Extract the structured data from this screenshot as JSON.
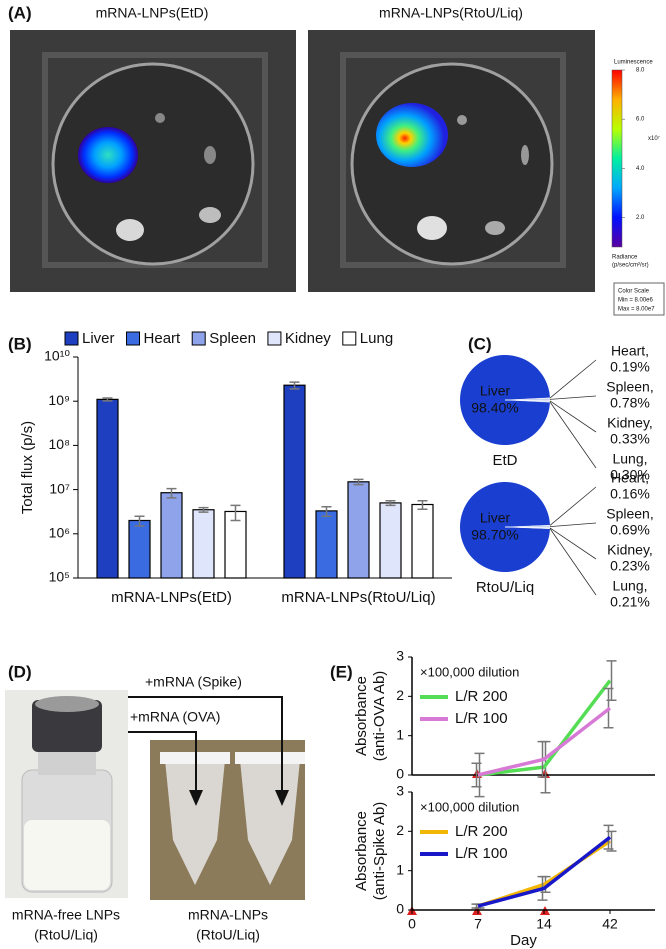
{
  "figure": {
    "panel_labels": [
      "(A)",
      "(B)",
      "(C)",
      "(D)",
      "(E)"
    ],
    "image_titles": [
      "mRNA-LNPs(EtD)",
      "mRNA-LNPs(RtoU/Liq)"
    ],
    "colorbar_box": [
      "Color Scale",
      "Min = 8.00e6",
      "Max = 8.00e7"
    ],
    "arrow_labels": [
      "+mRNA (Spike)",
      "+mRNA (OVA)"
    ],
    "photo_captions": [
      [
        "mRNA-free LNPs",
        "(RtoU/Liq)"
      ],
      [
        "mRNA-LNPs",
        "(RtoU/Liq)"
      ]
    ]
  },
  "chart_data": [
    {
      "type": "colorbar",
      "title": "Luminescence",
      "scale_label": "x10⁷",
      "ylabel": [
        "Radiance",
        "(p/sec/cm²/sr)"
      ],
      "colors": [
        "#5a00a0",
        "#0010ff",
        "#00a8ff",
        "#00f0a0",
        "#b8ff00",
        "#ffb000",
        "#ff0000"
      ],
      "ylim": [
        0.8,
        8
      ],
      "yticks": [
        {
          "value": 2,
          "label": "2.0"
        },
        {
          "value": 4,
          "label": "4.0"
        },
        {
          "value": 6,
          "label": "6.0"
        },
        {
          "value": 8,
          "label": "8.0"
        }
      ]
    },
    {
      "type": "bar",
      "yscale": "log",
      "ylabel": "Total flux (p/s)",
      "categories": [
        "mRNA-LNPs(EtD)",
        "mRNA-LNPs(RtoU/Liq)"
      ],
      "series": [
        {
          "name": "Liver",
          "color": "#1e3fbf",
          "values": [
            1100000000,
            2300000000
          ],
          "errors": [
            80000000,
            400000000
          ]
        },
        {
          "name": "Heart",
          "color": "#3a6be0",
          "values": [
            2000000,
            3300000
          ],
          "errors": [
            500000,
            800000
          ]
        },
        {
          "name": "Spleen",
          "color": "#8ea3ea",
          "values": [
            8500000,
            15000000
          ],
          "errors": [
            2000000,
            2000000
          ]
        },
        {
          "name": "Kidney",
          "color": "#dfe5fb",
          "values": [
            3500000,
            5000000
          ],
          "errors": [
            400000,
            600000
          ]
        },
        {
          "name": "Lung",
          "color": "#ffffff",
          "values": [
            3200000,
            4600000
          ],
          "errors": [
            1200000,
            1000000
          ]
        }
      ],
      "ylim": [
        100000,
        10000000000
      ],
      "yticks": [
        {
          "value": 100000,
          "label": "10⁵"
        },
        {
          "value": 1000000,
          "label": "10⁶"
        },
        {
          "value": 10000000,
          "label": "10⁷"
        },
        {
          "value": 100000000,
          "label": "10⁸"
        },
        {
          "value": 1000000000,
          "label": "10⁹"
        },
        {
          "value": 10000000000,
          "label": "10¹⁰"
        }
      ]
    },
    {
      "type": "pie",
      "title": "EtD",
      "color": "#1a3fd0",
      "categories": [
        "Liver",
        "Heart,",
        "Spleen,",
        "Kidney,",
        "Lung,"
      ],
      "values": [
        98.4,
        0.19,
        0.78,
        0.33,
        0.3
      ],
      "value_labels": [
        "98.40%",
        "0.19%",
        "0.78%",
        "0.33%",
        "0.30%"
      ]
    },
    {
      "type": "pie",
      "title": "RtoU/Liq",
      "color": "#1a3fd0",
      "categories": [
        "Liver",
        "Heart,",
        "Spleen,",
        "Kidney,",
        "Lung,"
      ],
      "values": [
        98.7,
        0.16,
        0.69,
        0.23,
        0.21
      ],
      "value_labels": [
        "98.70%",
        "0.16%",
        "0.69%",
        "0.23%",
        "0.21%"
      ]
    },
    {
      "type": "line",
      "annotation": "×100,000 dilution",
      "ylabel": [
        "Absorbance",
        "(anti-OVA Ab)"
      ],
      "categories": [
        null,
        null,
        null,
        null
      ],
      "series": [
        {
          "name": "L/R 200",
          "color": "#55dd55",
          "values": [
            null,
            0,
            0.2,
            2.4
          ],
          "errors": [
            null,
            0.55,
            0.65,
            0.5
          ]
        },
        {
          "name": "L/R 100",
          "color": "#d67ad6",
          "values": [
            null,
            0,
            0.4,
            1.7
          ],
          "errors": [
            null,
            0.3,
            0.45,
            0.5
          ]
        }
      ],
      "ylim": [
        0,
        3
      ],
      "yticks": [
        0,
        1,
        2,
        3
      ]
    },
    {
      "type": "line",
      "annotation": "×100,000 dilution",
      "ylabel": [
        "Absorbance",
        "(anti-Spike Ab)"
      ],
      "xlabel": "Day",
      "categories": [
        "0",
        "7",
        "14",
        "42"
      ],
      "series": [
        {
          "name": "L/R 200",
          "color": "#f2b705",
          "values": [
            null,
            0.1,
            0.65,
            1.75
          ],
          "errors": [
            null,
            0.05,
            0.2,
            0.25
          ]
        },
        {
          "name": "L/R 100",
          "color": "#1818c8",
          "values": [
            null,
            0.1,
            0.55,
            1.85
          ],
          "errors": [
            null,
            0.05,
            0.3,
            0.3
          ]
        }
      ],
      "ylim": [
        0,
        3
      ],
      "yticks": [
        0,
        1,
        2,
        3
      ]
    }
  ]
}
